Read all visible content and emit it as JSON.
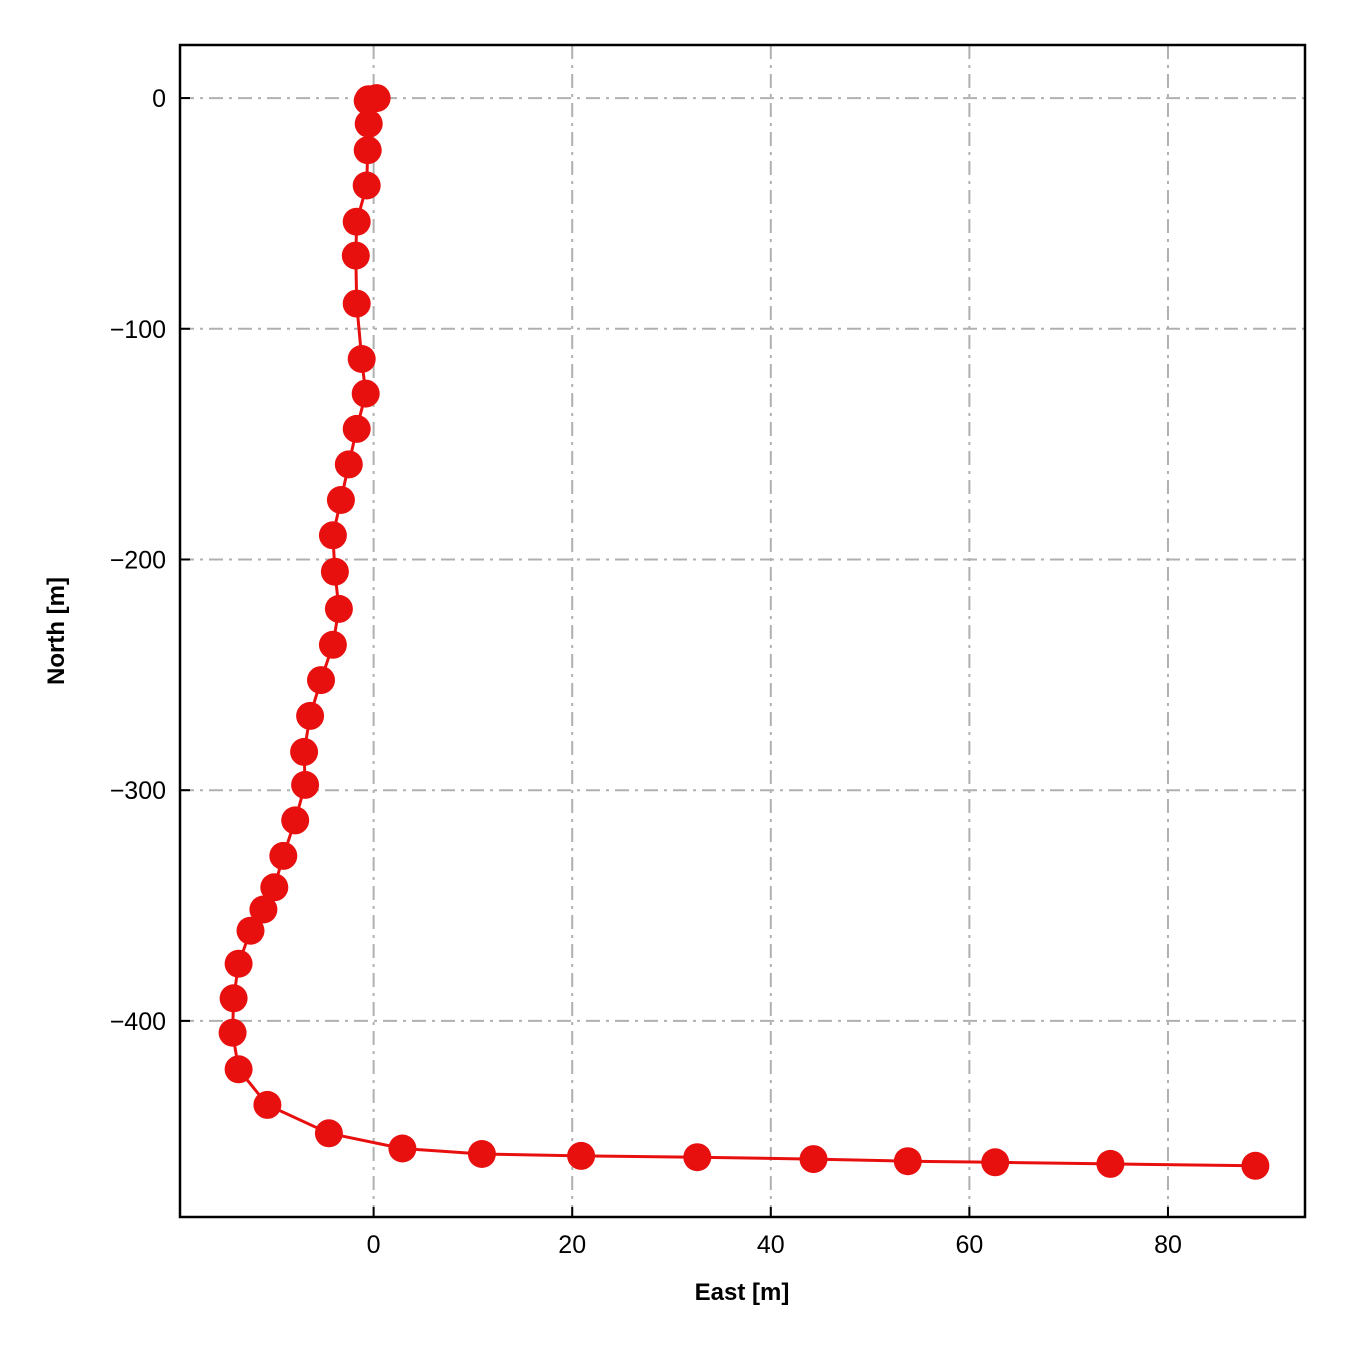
{
  "chart_data": {
    "type": "line",
    "title": "",
    "xlabel": "East [m]",
    "ylabel": "North [m]",
    "xlim": [
      -19.5,
      93.8
    ],
    "ylim": [
      -485,
      23
    ],
    "xticks": [
      0,
      20,
      40,
      60,
      80
    ],
    "yticks": [
      0,
      -100,
      -200,
      -300,
      -400
    ],
    "grid": true,
    "color": "#e8100f",
    "series": [
      {
        "x": [
          0.3,
          -0.5,
          -0.6,
          -0.5,
          -0.6,
          -0.7,
          -1.7,
          -1.8,
          -1.7,
          -1.2,
          -0.8,
          -1.7,
          -2.5,
          -3.3,
          -4.1,
          -3.9,
          -3.5,
          -4.1,
          -5.3,
          -6.4,
          -7.0,
          -6.9,
          -7.9,
          -9.1,
          -10.0,
          -11.1,
          -12.4,
          -13.6,
          -14.1,
          -14.2,
          -13.6,
          -10.7,
          -4.5,
          2.9,
          10.9,
          20.9,
          32.6,
          44.3,
          53.8,
          62.6,
          74.2,
          88.8
        ],
        "y": [
          0,
          -0.5,
          -1.2,
          -11.1,
          -22.6,
          -37.9,
          -53.6,
          -68.3,
          -89.1,
          -113.1,
          -128.1,
          -143.4,
          -158.8,
          -174.2,
          -189.5,
          -205.3,
          -221.4,
          -237.0,
          -252.3,
          -267.8,
          -283.4,
          -297.7,
          -313.1,
          -328.5,
          -342.1,
          -351.7,
          -360.9,
          -375.2,
          -390.2,
          -405.1,
          -421.0,
          -436.4,
          -448.7,
          -455.3,
          -457.7,
          -458.5,
          -459.1,
          -459.9,
          -460.8,
          -461.3,
          -462.0,
          -462.8
        ]
      }
    ]
  }
}
